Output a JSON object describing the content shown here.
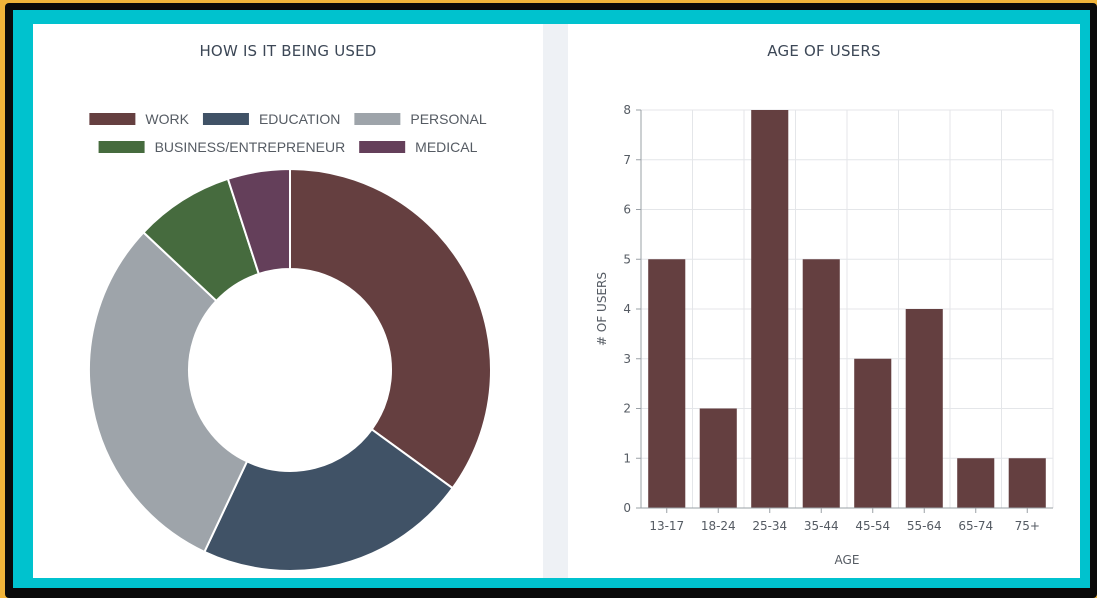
{
  "chart_data": [
    {
      "type": "pie",
      "title": "HOW IS IT BEING USED",
      "categories": [
        "WORK",
        "EDUCATION",
        "PERSONAL",
        "BUSINESS/ENTREPRENEUR",
        "MEDICAL"
      ],
      "values": [
        35,
        22,
        30,
        8,
        5
      ],
      "colors": [
        "#653f40",
        "#405266",
        "#9ea4aa",
        "#466b3e",
        "#643f5a"
      ],
      "donut": true,
      "legend_position": "top"
    },
    {
      "type": "bar",
      "title": "AGE OF USERS",
      "categories": [
        "13-17",
        "18-24",
        "25-34",
        "35-44",
        "45-54",
        "55-64",
        "65-74",
        "75+"
      ],
      "values": [
        5,
        2,
        8,
        5,
        3,
        4,
        1,
        1
      ],
      "xlabel": "AGE",
      "ylabel": "# OF USERS",
      "ylim": [
        0,
        8
      ],
      "yticks": [
        0,
        1,
        2,
        3,
        4,
        5,
        6,
        7,
        8
      ],
      "bar_color": "#643f40",
      "grid": true
    }
  ]
}
